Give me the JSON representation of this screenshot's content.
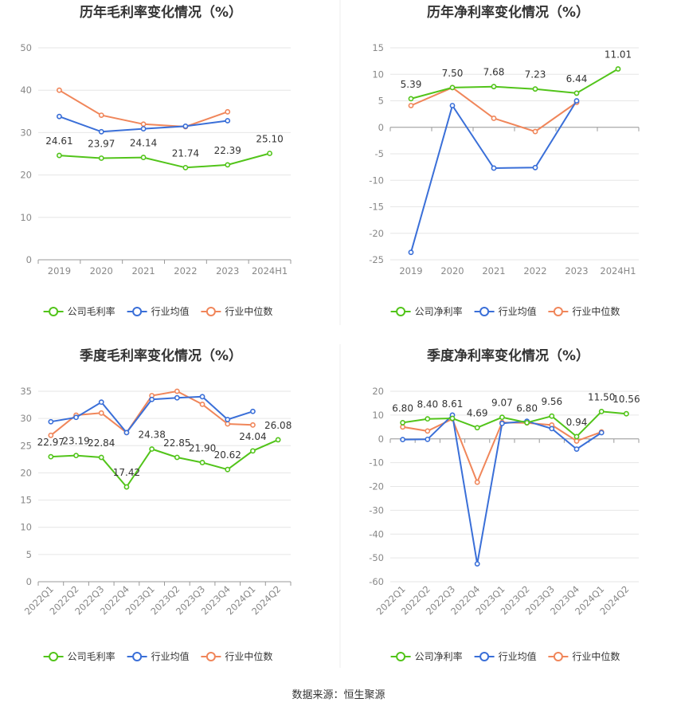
{
  "source": "数据来源：恒生聚源",
  "colors": {
    "company": "#52c41a",
    "industry_avg": "#3a6fd8",
    "industry_median": "#f0865a",
    "grid": "#e6e6e6",
    "axis": "#999999"
  },
  "legend": [
    "公司毛利率",
    "行业均值",
    "行业中位数"
  ],
  "chart_data": [
    {
      "type": "line",
      "title": "历年毛利率变化情况（%）",
      "categories": [
        "2019",
        "2020",
        "2021",
        "2022",
        "2023",
        "2024H1"
      ],
      "ylim": [
        0,
        50
      ],
      "yticks": [
        0,
        10,
        20,
        30,
        40,
        50
      ],
      "rotate_x": false,
      "legend": [
        "公司毛利率",
        "行业均值",
        "行业中位数"
      ],
      "series": [
        {
          "name": "公司毛利率",
          "color": "company",
          "values": [
            24.61,
            23.97,
            24.14,
            21.74,
            22.39,
            25.1
          ],
          "labels": [
            "24.61",
            "23.97",
            "24.14",
            "21.74",
            "22.39",
            "25.10"
          ]
        },
        {
          "name": "行业均值",
          "color": "industry_avg",
          "values": [
            33.8,
            30.2,
            30.9,
            31.5,
            32.8,
            null
          ]
        },
        {
          "name": "行业中位数",
          "color": "industry_median",
          "values": [
            40.0,
            34.1,
            32.0,
            31.4,
            34.9,
            null
          ]
        }
      ]
    },
    {
      "type": "line",
      "title": "历年净利率变化情况（%）",
      "categories": [
        "2019",
        "2020",
        "2021",
        "2022",
        "2023",
        "2024H1"
      ],
      "ylim": [
        -25,
        15
      ],
      "yticks": [
        -25,
        -20,
        -15,
        -10,
        -5,
        0,
        5,
        10,
        15
      ],
      "rotate_x": false,
      "legend": [
        "公司净利率",
        "行业均值",
        "行业中位数"
      ],
      "series": [
        {
          "name": "公司净利率",
          "color": "company",
          "values": [
            5.39,
            7.5,
            7.68,
            7.23,
            6.44,
            11.01
          ],
          "labels": [
            "5.39",
            "7.50",
            "7.68",
            "7.23",
            "6.44",
            "11.01"
          ]
        },
        {
          "name": "行业均值",
          "color": "industry_avg",
          "values": [
            -23.6,
            4.1,
            -7.7,
            -7.6,
            5.0,
            null
          ]
        },
        {
          "name": "行业中位数",
          "color": "industry_median",
          "values": [
            4.1,
            7.5,
            1.7,
            -0.8,
            4.7,
            null
          ]
        }
      ]
    },
    {
      "type": "line",
      "title": "季度毛利率变化情况（%）",
      "categories": [
        "2022Q1",
        "2022Q2",
        "2022Q3",
        "2022Q4",
        "2023Q1",
        "2023Q2",
        "2023Q3",
        "2023Q4",
        "2024Q1",
        "2024Q2"
      ],
      "ylim": [
        0,
        35
      ],
      "yticks": [
        0,
        5,
        10,
        15,
        20,
        25,
        30,
        35
      ],
      "rotate_x": true,
      "legend": [
        "公司毛利率",
        "行业均值",
        "行业中位数"
      ],
      "series": [
        {
          "name": "公司毛利率",
          "color": "company",
          "values": [
            22.97,
            23.19,
            22.84,
            17.42,
            24.38,
            22.85,
            21.9,
            20.62,
            24.04,
            26.08
          ],
          "labels": [
            "22.97",
            "23.19",
            "22.84",
            "17.42",
            "24.38",
            "22.85",
            "21.90",
            "20.62",
            "24.04",
            "26.08"
          ]
        },
        {
          "name": "行业均值",
          "color": "industry_avg",
          "values": [
            29.4,
            30.2,
            33.0,
            27.4,
            33.5,
            33.8,
            34.0,
            29.8,
            31.3,
            null
          ]
        },
        {
          "name": "行业中位数",
          "color": "industry_median",
          "values": [
            26.9,
            30.6,
            31.0,
            27.4,
            34.2,
            35.0,
            32.6,
            29.0,
            28.8,
            null
          ]
        }
      ]
    },
    {
      "type": "line",
      "title": "季度净利率变化情况（%）",
      "categories": [
        "2022Q1",
        "2022Q2",
        "2022Q3",
        "2022Q4",
        "2023Q1",
        "2023Q2",
        "2023Q3",
        "2023Q4",
        "2024Q1",
        "2024Q2"
      ],
      "ylim": [
        -60,
        20
      ],
      "yticks": [
        -60,
        -50,
        -40,
        -30,
        -20,
        -10,
        0,
        10,
        20
      ],
      "rotate_x": true,
      "legend": [
        "公司净利率",
        "行业均值",
        "行业中位数"
      ],
      "series": [
        {
          "name": "公司净利率",
          "color": "company",
          "values": [
            6.8,
            8.4,
            8.61,
            4.69,
            9.07,
            6.8,
            9.56,
            0.94,
            11.5,
            10.56
          ],
          "labels": [
            "6.80",
            "8.40",
            "8.61",
            "4.69",
            "9.07",
            "6.80",
            "9.56",
            "0.94",
            "11.50",
            "10.56"
          ]
        },
        {
          "name": "行业均值",
          "color": "industry_avg",
          "values": [
            -0.3,
            -0.2,
            10.0,
            -52.5,
            6.5,
            7.4,
            4.3,
            -4.3,
            2.6,
            null
          ]
        },
        {
          "name": "行业中位数",
          "color": "industry_median",
          "values": [
            5.0,
            3.3,
            8.4,
            -18.2,
            6.9,
            6.7,
            5.8,
            -0.9,
            2.9,
            null
          ]
        }
      ]
    }
  ]
}
